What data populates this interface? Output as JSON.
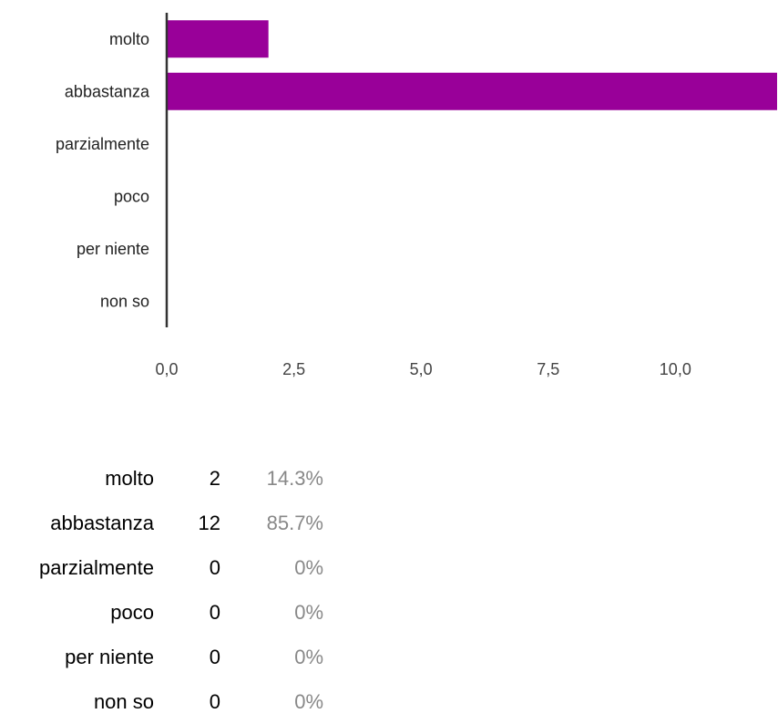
{
  "chart_data": {
    "type": "bar",
    "orientation": "horizontal",
    "categories": [
      "molto",
      "abbastanza",
      "parzialmente",
      "poco",
      "per niente",
      "non so"
    ],
    "values": [
      2,
      12,
      0,
      0,
      0,
      0
    ],
    "xlim": [
      0,
      12
    ],
    "x_ticks": [
      "0,0",
      "2,5",
      "5,0",
      "7,5",
      "10,0"
    ],
    "x_tick_values": [
      0,
      2.5,
      5,
      7.5,
      10
    ],
    "bar_color": "#990099",
    "axis_color": "#333333",
    "grid": false
  },
  "summary": {
    "rows": [
      {
        "label": "molto",
        "count": "2",
        "percent": "14.3%"
      },
      {
        "label": "abbastanza",
        "count": "12",
        "percent": "85.7%"
      },
      {
        "label": "parzialmente",
        "count": "0",
        "percent": "0%"
      },
      {
        "label": "poco",
        "count": "0",
        "percent": "0%"
      },
      {
        "label": "per niente",
        "count": "0",
        "percent": "0%"
      },
      {
        "label": "non so",
        "count": "0",
        "percent": "0%"
      }
    ]
  }
}
